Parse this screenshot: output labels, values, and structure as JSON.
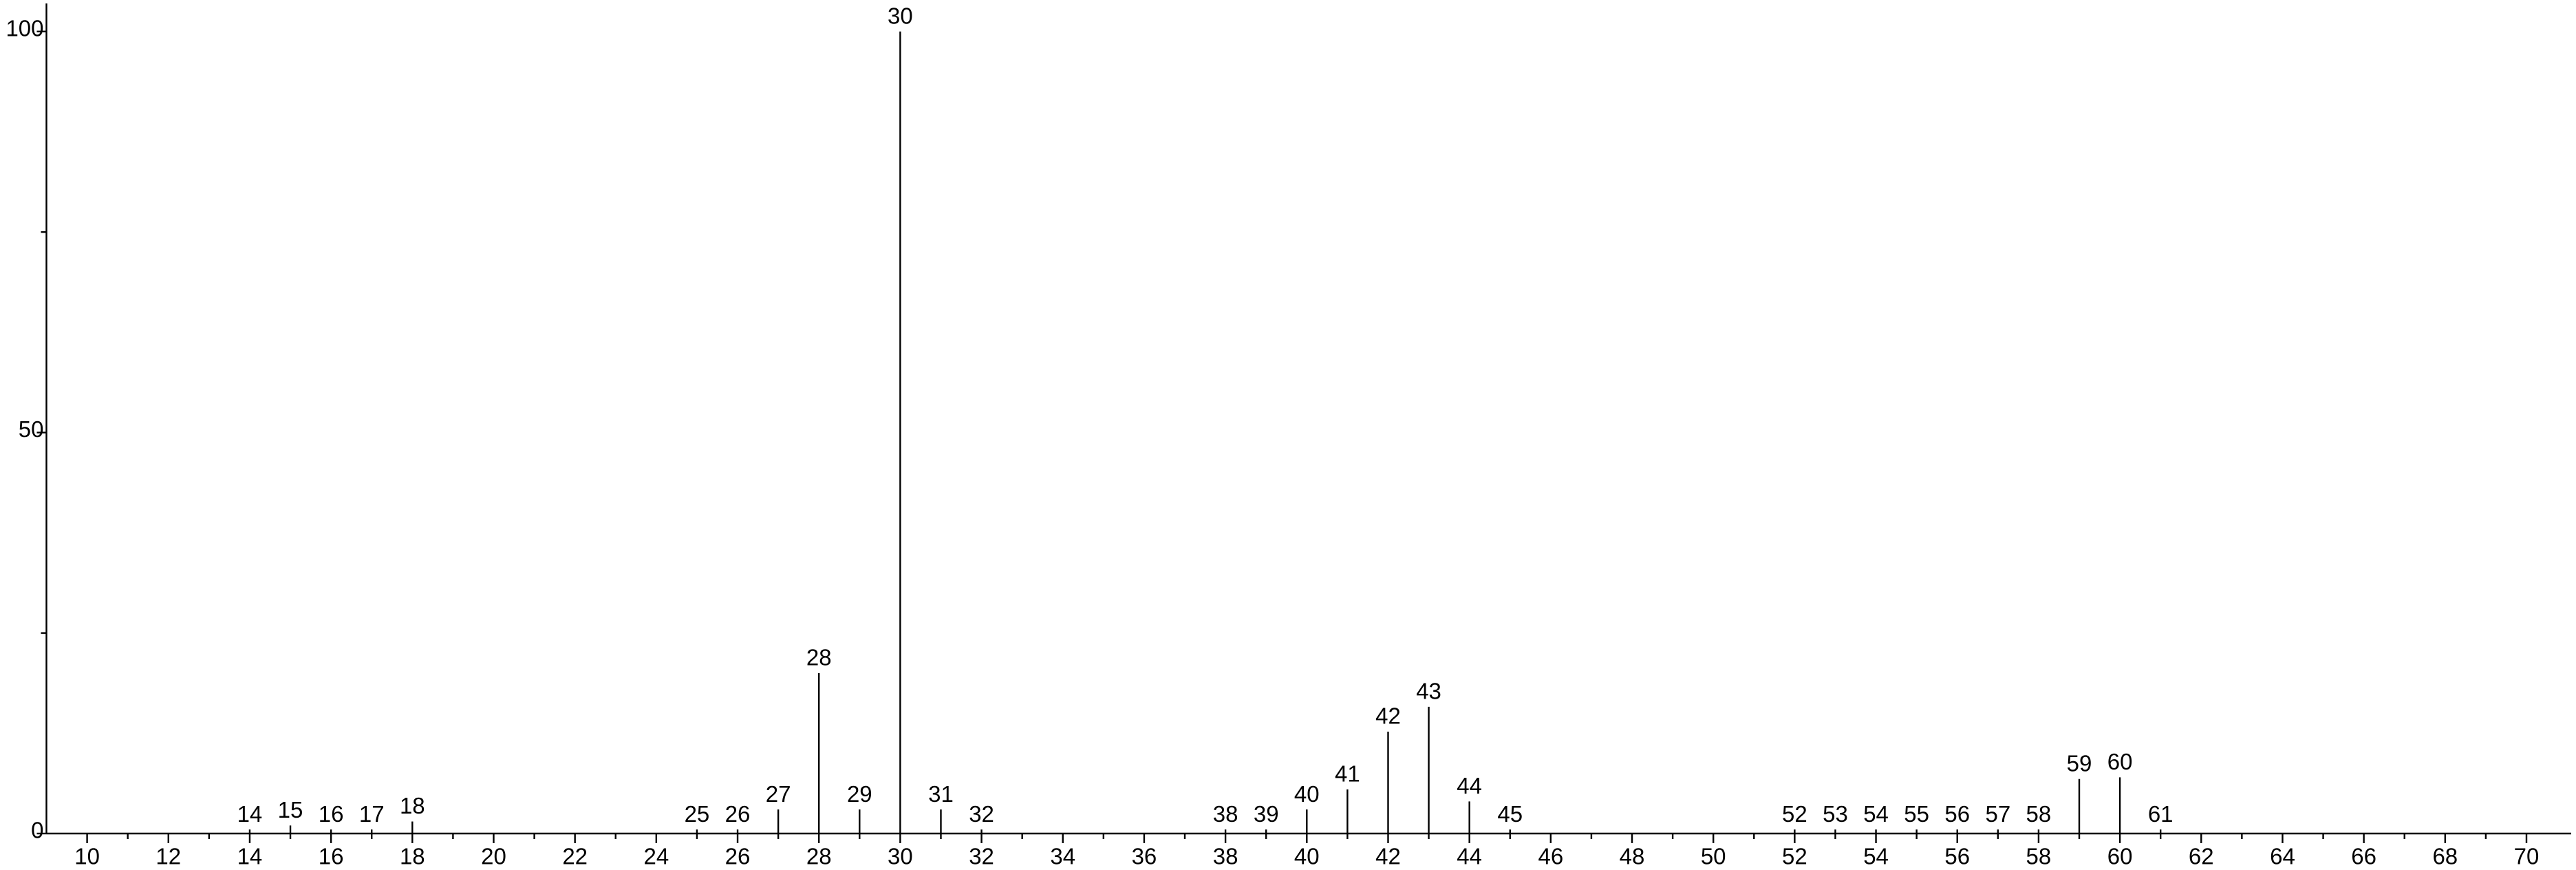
{
  "chart_data": {
    "type": "bar",
    "x": [
      14,
      15,
      16,
      17,
      18,
      25,
      26,
      27,
      28,
      29,
      30,
      31,
      32,
      38,
      39,
      40,
      41,
      42,
      43,
      44,
      45,
      52,
      53,
      54,
      55,
      56,
      57,
      58,
      59,
      60,
      61
    ],
    "values": [
      0.5,
      1,
      0.5,
      0.5,
      1.5,
      0.5,
      0.5,
      3,
      20,
      3,
      100,
      3,
      0.5,
      0.5,
      0.5,
      3,
      5.5,
      12.7,
      15.8,
      4,
      0.5,
      0.5,
      0.5,
      0.5,
      0.5,
      0.5,
      0.5,
      0.5,
      6.8,
      7,
      0.5
    ],
    "color": "#000000",
    "xlim": [
      9,
      71.1
    ],
    "xticks": [
      10,
      12,
      14,
      16,
      18,
      20,
      22,
      24,
      26,
      28,
      30,
      32,
      34,
      36,
      38,
      40,
      42,
      44,
      46,
      48,
      50,
      52,
      54,
      56,
      58,
      60,
      62,
      64,
      66,
      68,
      70
    ],
    "ylim": [
      0,
      103.5
    ],
    "yticks": [
      0,
      50,
      100
    ]
  }
}
